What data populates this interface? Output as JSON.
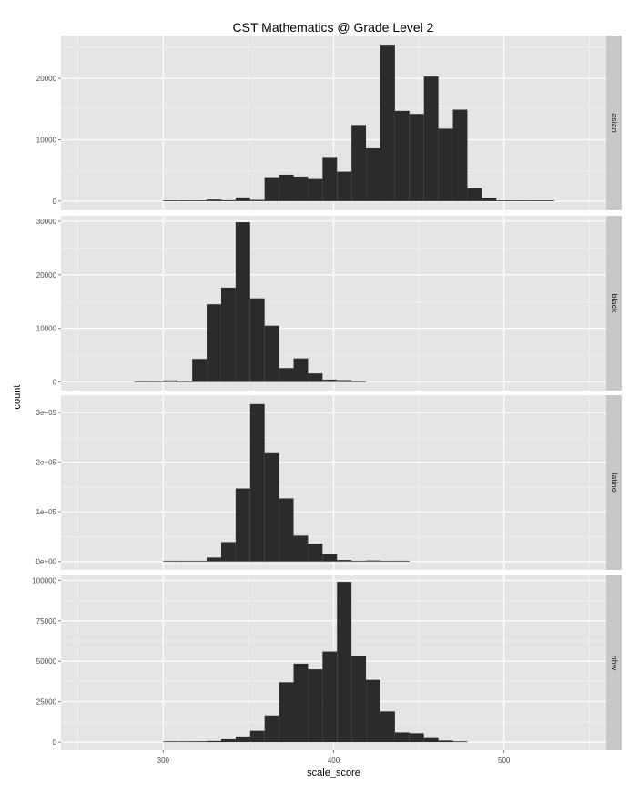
{
  "chart_data": {
    "type": "bar",
    "title": "CST Mathematics @ Grade Level 2",
    "xlabel": "scale_score",
    "ylabel": "count",
    "xlim": [
      240,
      560
    ],
    "x_ticks": [
      300,
      400,
      500
    ],
    "x_tick_labels": [
      "300",
      "400",
      "500"
    ],
    "bin_width": 8.5,
    "grid": true,
    "legend": "none",
    "colors": {
      "bar": "#2b2b2b",
      "panel": "#e5e5e5",
      "grid": "#ffffff",
      "strip": "#c8c8c8"
    },
    "facets": [
      {
        "name": "asian",
        "ylim": [
          -1500,
          27000
        ],
        "y_ticks": [
          0,
          10000,
          20000
        ],
        "y_tick_labels": [
          "0",
          "10000",
          "20000"
        ],
        "bins": [
          {
            "x": 300,
            "count": 100
          },
          {
            "x": 308.5,
            "count": 80
          },
          {
            "x": 317,
            "count": 60
          },
          {
            "x": 325.5,
            "count": 250
          },
          {
            "x": 334,
            "count": 150
          },
          {
            "x": 342.5,
            "count": 600
          },
          {
            "x": 351,
            "count": 200
          },
          {
            "x": 359.5,
            "count": 3900
          },
          {
            "x": 368,
            "count": 4300
          },
          {
            "x": 376.5,
            "count": 4000
          },
          {
            "x": 385,
            "count": 3600
          },
          {
            "x": 393.5,
            "count": 7200
          },
          {
            "x": 402,
            "count": 4800
          },
          {
            "x": 410.5,
            "count": 12400
          },
          {
            "x": 419,
            "count": 8600
          },
          {
            "x": 427.5,
            "count": 25500
          },
          {
            "x": 436,
            "count": 14700
          },
          {
            "x": 444.5,
            "count": 14200
          },
          {
            "x": 453,
            "count": 20300
          },
          {
            "x": 461.5,
            "count": 11800
          },
          {
            "x": 470,
            "count": 14900
          },
          {
            "x": 478.5,
            "count": 2100
          },
          {
            "x": 487,
            "count": 500
          },
          {
            "x": 495.5,
            "count": 60
          },
          {
            "x": 504,
            "count": 40
          },
          {
            "x": 512.5,
            "count": 30
          },
          {
            "x": 521,
            "count": 100
          }
        ]
      },
      {
        "name": "black",
        "ylim": [
          -1600,
          31000
        ],
        "y_ticks": [
          0,
          10000,
          20000,
          30000
        ],
        "y_tick_labels": [
          "0",
          "10000",
          "20000",
          "30000"
        ],
        "bins": [
          {
            "x": 283,
            "count": 150
          },
          {
            "x": 291.5,
            "count": 50
          },
          {
            "x": 300,
            "count": 300
          },
          {
            "x": 308.5,
            "count": 120
          },
          {
            "x": 317,
            "count": 4300
          },
          {
            "x": 325.5,
            "count": 14500
          },
          {
            "x": 334,
            "count": 17600
          },
          {
            "x": 342.5,
            "count": 29800
          },
          {
            "x": 351,
            "count": 15600
          },
          {
            "x": 359.5,
            "count": 10500
          },
          {
            "x": 368,
            "count": 2600
          },
          {
            "x": 376.5,
            "count": 4400
          },
          {
            "x": 385,
            "count": 1600
          },
          {
            "x": 393.5,
            "count": 450
          },
          {
            "x": 402,
            "count": 350
          },
          {
            "x": 410.5,
            "count": 100
          }
        ]
      },
      {
        "name": "latino",
        "ylim": [
          -17000,
          335000
        ],
        "y_ticks": [
          0,
          100000,
          200000,
          300000
        ],
        "y_tick_labels": [
          "0e+00",
          "1e+05",
          "2e+05",
          "3e+05"
        ],
        "bins": [
          {
            "x": 300,
            "count": 1500
          },
          {
            "x": 308.5,
            "count": 800
          },
          {
            "x": 317,
            "count": 1200
          },
          {
            "x": 325.5,
            "count": 8000
          },
          {
            "x": 334,
            "count": 39000
          },
          {
            "x": 342.5,
            "count": 147000
          },
          {
            "x": 351,
            "count": 317000
          },
          {
            "x": 359.5,
            "count": 218000
          },
          {
            "x": 368,
            "count": 127000
          },
          {
            "x": 376.5,
            "count": 52000
          },
          {
            "x": 385,
            "count": 36000
          },
          {
            "x": 393.5,
            "count": 15000
          },
          {
            "x": 402,
            "count": 3000
          },
          {
            "x": 410.5,
            "count": 1000
          },
          {
            "x": 419,
            "count": 2000
          },
          {
            "x": 427.5,
            "count": 800
          },
          {
            "x": 436,
            "count": 1500
          }
        ]
      },
      {
        "name": "nhw",
        "ylim": [
          -5000,
          103000
        ],
        "y_ticks": [
          0,
          25000,
          50000,
          75000,
          100000
        ],
        "y_tick_labels": [
          "0",
          "25000",
          "50000",
          "75000",
          "100000"
        ],
        "bins": [
          {
            "x": 300,
            "count": 300
          },
          {
            "x": 308.5,
            "count": 200
          },
          {
            "x": 317,
            "count": 500
          },
          {
            "x": 325.5,
            "count": 700
          },
          {
            "x": 334,
            "count": 1800
          },
          {
            "x": 342.5,
            "count": 3500
          },
          {
            "x": 351,
            "count": 7000
          },
          {
            "x": 359.5,
            "count": 16500
          },
          {
            "x": 368,
            "count": 37000
          },
          {
            "x": 376.5,
            "count": 48500
          },
          {
            "x": 385,
            "count": 45000
          },
          {
            "x": 393.5,
            "count": 56000
          },
          {
            "x": 402,
            "count": 99000
          },
          {
            "x": 410.5,
            "count": 53500
          },
          {
            "x": 419,
            "count": 38500
          },
          {
            "x": 427.5,
            "count": 19000
          },
          {
            "x": 436,
            "count": 6000
          },
          {
            "x": 444.5,
            "count": 5500
          },
          {
            "x": 453,
            "count": 2500
          },
          {
            "x": 461.5,
            "count": 1000
          },
          {
            "x": 470,
            "count": 200
          }
        ]
      }
    ]
  }
}
